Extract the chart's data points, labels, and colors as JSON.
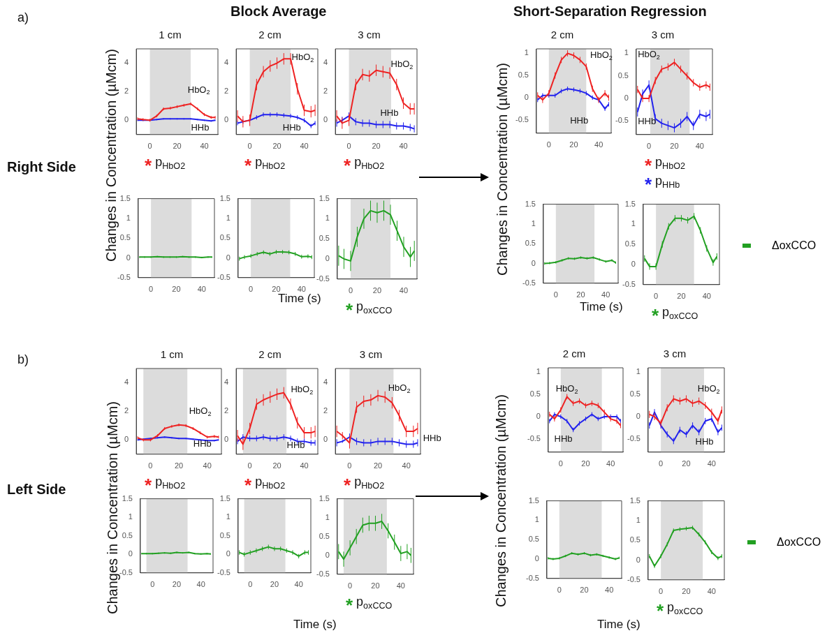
{
  "chart_data": [
    {
      "type": "line",
      "title": "1 cm",
      "x": [
        -9,
        -5,
        0,
        5,
        10,
        15,
        20,
        25,
        30,
        35,
        40,
        45,
        48
      ],
      "xlim": [
        -10,
        50
      ],
      "xticks": [
        0,
        20,
        40
      ],
      "ylim": [
        -1,
        5
      ],
      "yticks": [
        0,
        2,
        4
      ],
      "bands": [
        {
          "axis": "x",
          "from": 0,
          "to": 30,
          "color": "#dcdcdc"
        }
      ],
      "series": [
        {
          "name": "HbO$_{2}$",
          "color": "#ee2222",
          "values": [
            0.1,
            0.05,
            0,
            0.3,
            0.8,
            0.85,
            0.95,
            1.05,
            1.15,
            0.8,
            0.4,
            0.2,
            0.2
          ],
          "errors": [
            0.1,
            0.1,
            0.1,
            0.1,
            0.1,
            0.1,
            0.1,
            0.1,
            0.1,
            0.1,
            0.1,
            0.1,
            0.1
          ]
        },
        {
          "name": "HHb",
          "color": "#2222ee",
          "values": [
            0,
            0,
            0,
            0.05,
            0.1,
            0.1,
            0.1,
            0.1,
            0.1,
            0.05,
            0,
            -0.05,
            0
          ],
          "errors": [
            0.05,
            0.05,
            0.05,
            0.05,
            0.05,
            0.05,
            0.05,
            0.05,
            0.05,
            0.05,
            0.05,
            0.05,
            0.05
          ]
        }
      ],
      "annotations": [
        "* p$_{HbO2}$"
      ]
    },
    {
      "type": "line",
      "title": "2 cm",
      "x": [
        -9,
        -5,
        0,
        5,
        10,
        15,
        20,
        25,
        30,
        35,
        40,
        45,
        48
      ],
      "xlim": [
        -10,
        50
      ],
      "xticks": [
        0,
        20,
        40
      ],
      "ylim": [
        -1,
        5
      ],
      "yticks": [
        0,
        2,
        4
      ],
      "bands": [
        {
          "axis": "x",
          "from": 0,
          "to": 30,
          "color": "#dcdcdc"
        }
      ],
      "series": [
        {
          "name": "HbO$_{2}$",
          "color": "#ee2222",
          "values": [
            0.3,
            -0.1,
            0,
            2.5,
            3.4,
            3.8,
            4,
            4.3,
            4.3,
            2.2,
            0.7,
            0.6,
            0.7
          ],
          "errors": [
            0.4,
            0.4,
            0.4,
            0.4,
            0.4,
            0.4,
            0.4,
            0.4,
            0.4,
            0.4,
            0.4,
            0.4,
            0.4
          ]
        },
        {
          "name": "HHb",
          "color": "#2222ee",
          "values": [
            -0.2,
            -0.1,
            0,
            0.2,
            0.4,
            0.4,
            0.4,
            0.35,
            0.3,
            0.2,
            0,
            -0.4,
            -0.2
          ],
          "errors": [
            0.15,
            0.15,
            0.15,
            0.15,
            0.15,
            0.15,
            0.15,
            0.15,
            0.15,
            0.15,
            0.15,
            0.15,
            0.15
          ]
        }
      ],
      "annotations": [
        "* p$_{HbO2}$"
      ]
    },
    {
      "type": "line",
      "title": "3 cm",
      "x": [
        -9,
        -5,
        0,
        5,
        10,
        15,
        20,
        25,
        30,
        35,
        40,
        45,
        48
      ],
      "xlim": [
        -10,
        50
      ],
      "xticks": [
        0,
        20,
        40
      ],
      "ylim": [
        -1,
        5
      ],
      "yticks": [
        0,
        2,
        4
      ],
      "bands": [
        {
          "axis": "x",
          "from": 0,
          "to": 31,
          "color": "#dcdcdc"
        }
      ],
      "series": [
        {
          "name": "HbO$_{2}$",
          "color": "#ee2222",
          "values": [
            0.3,
            -0.2,
            0,
            2.5,
            3.2,
            3.1,
            3.5,
            3.4,
            3.3,
            2.5,
            1.2,
            0.8,
            0.8
          ],
          "errors": [
            0.4,
            0.4,
            0.4,
            0.4,
            0.4,
            0.4,
            0.4,
            0.4,
            0.4,
            0.4,
            0.4,
            0.4,
            0.4
          ]
        },
        {
          "name": "HHb",
          "color": "#2222ee",
          "values": [
            -0.2,
            0,
            0.3,
            -0.1,
            -0.2,
            -0.2,
            -0.3,
            -0.3,
            -0.3,
            -0.4,
            -0.4,
            -0.5,
            -0.6
          ],
          "errors": [
            0.25,
            0.25,
            0.25,
            0.25,
            0.25,
            0.25,
            0.25,
            0.25,
            0.25,
            0.25,
            0.25,
            0.25,
            0.25
          ]
        }
      ],
      "annotations": [
        "* p$_{HbO2}$"
      ]
    },
    {
      "type": "line",
      "x": [
        -9,
        -5,
        0,
        5,
        10,
        15,
        20,
        25,
        30,
        35,
        40,
        45,
        48
      ],
      "xlim": [
        -10,
        50
      ],
      "xticks": [
        0,
        20,
        40
      ],
      "ylim": [
        -0.5,
        1.5
      ],
      "yticks": [
        -0.5,
        0,
        0.5,
        1,
        1.5
      ],
      "bands": [
        {
          "axis": "x",
          "from": 0,
          "to": 32,
          "color": "#dcdcdc"
        }
      ],
      "series": [
        {
          "color": "#22a022",
          "values": [
            0.02,
            0.02,
            0.02,
            0.03,
            0.02,
            0.02,
            0.02,
            0.03,
            0.02,
            0.02,
            0.01,
            0.02,
            0.02
          ],
          "errors": [
            0.02,
            0.02,
            0.02,
            0.02,
            0.02,
            0.02,
            0.02,
            0.02,
            0.02,
            0.02,
            0.02,
            0.02,
            0.02
          ]
        }
      ]
    },
    {
      "type": "line",
      "x": [
        -9,
        -5,
        0,
        5,
        10,
        15,
        20,
        25,
        30,
        35,
        40,
        45,
        48
      ],
      "xlim": [
        -10,
        50
      ],
      "xticks": [
        0,
        20,
        40
      ],
      "ylim": [
        -0.5,
        1.5
      ],
      "yticks": [
        -0.5,
        0,
        0.5,
        1,
        1.5
      ],
      "bands": [
        {
          "axis": "x",
          "from": 0,
          "to": 31,
          "color": "#dcdcdc"
        }
      ],
      "series": [
        {
          "color": "#22a022",
          "values": [
            -0.02,
            0.02,
            0.05,
            0.1,
            0.14,
            0.1,
            0.15,
            0.15,
            0.14,
            0.1,
            0.03,
            0.04,
            0.02
          ],
          "errors": [
            0.05,
            0.05,
            0.05,
            0.05,
            0.05,
            0.05,
            0.05,
            0.05,
            0.05,
            0.05,
            0.05,
            0.05,
            0.05
          ]
        }
      ]
    },
    {
      "type": "line",
      "x": [
        -9,
        -5,
        0,
        5,
        10,
        15,
        20,
        25,
        30,
        35,
        40,
        45,
        48
      ],
      "xlim": [
        -10,
        50
      ],
      "xticks": [
        0,
        20,
        40
      ],
      "ylim": [
        -0.5,
        1.5
      ],
      "yticks": [
        -0.5,
        0,
        0.5,
        1,
        1.5
      ],
      "bands": [
        {
          "axis": "x",
          "from": 0,
          "to": 30,
          "color": "#dcdcdc"
        }
      ],
      "series": [
        {
          "color": "#22a022",
          "values": [
            0.08,
            0,
            -0.05,
            0.55,
            1,
            1.2,
            1.15,
            1.2,
            1.1,
            0.7,
            0.3,
            0.05,
            0.2
          ],
          "errors": [
            0.25,
            0.25,
            0.25,
            0.25,
            0.25,
            0.25,
            0.25,
            0.25,
            0.25,
            0.25,
            0.25,
            0.25,
            0.25
          ]
        }
      ],
      "annotations": [
        "* p$_{oxCCO}$"
      ]
    },
    {
      "type": "line",
      "title": "2 cm",
      "x": [
        -9,
        -5,
        0,
        5,
        10,
        15,
        20,
        25,
        30,
        35,
        40,
        45,
        48
      ],
      "xlim": [
        -10,
        50
      ],
      "xticks": [
        0,
        20,
        40
      ],
      "ylim": [
        -0.8,
        1.1
      ],
      "yticks": [
        -0.5,
        0,
        0.5,
        1
      ],
      "bands": [
        {
          "axis": "x",
          "from": 0,
          "to": 30,
          "color": "#dcdcdc"
        }
      ],
      "series": [
        {
          "name": "HbO$_{2}$",
          "color": "#ee2222",
          "values": [
            0.05,
            -0.05,
            0.1,
            0.5,
            0.85,
            1,
            0.95,
            0.85,
            0.7,
            0.2,
            -0.05,
            0.1,
            0
          ],
          "errors": [
            0.07,
            0.07,
            0.07,
            0.07,
            0.07,
            0.07,
            0.07,
            0.07,
            0.07,
            0.07,
            0.07,
            0.07,
            0.07
          ]
        },
        {
          "name": "HHb",
          "color": "#2222ee",
          "values": [
            -0.05,
            0.05,
            0.05,
            0.05,
            0.15,
            0.2,
            0.18,
            0.15,
            0.1,
            0,
            -0.05,
            -0.25,
            -0.15
          ],
          "errors": [
            0.05,
            0.05,
            0.05,
            0.05,
            0.05,
            0.05,
            0.05,
            0.05,
            0.05,
            0.05,
            0.05,
            0.05,
            0.05
          ]
        }
      ]
    },
    {
      "type": "line",
      "title": "3 cm",
      "x": [
        -9,
        -5,
        0,
        5,
        10,
        15,
        20,
        25,
        30,
        35,
        40,
        45,
        48
      ],
      "xlim": [
        -10,
        50
      ],
      "xticks": [
        0,
        20,
        40
      ],
      "ylim": [
        -0.8,
        1.1
      ],
      "yticks": [
        -0.5,
        0,
        0.5,
        1
      ],
      "bands": [
        {
          "axis": "x",
          "from": 1,
          "to": 32,
          "color": "#dcdcdc"
        }
      ],
      "series": [
        {
          "name": "HbO$_{2}$",
          "color": "#ee2222",
          "values": [
            0.2,
            0,
            0,
            0.4,
            0.65,
            0.7,
            0.8,
            0.65,
            0.5,
            0.35,
            0.25,
            0.3,
            0.25
          ],
          "errors": [
            0.08,
            0.08,
            0.08,
            0.08,
            0.08,
            0.08,
            0.08,
            0.08,
            0.08,
            0.08,
            0.08,
            0.08,
            0.08
          ]
        },
        {
          "name": "HHb",
          "color": "#2222ee",
          "values": [
            -0.3,
            0.1,
            0.3,
            -0.45,
            -0.55,
            -0.6,
            -0.65,
            -0.55,
            -0.4,
            -0.6,
            -0.35,
            -0.4,
            -0.35
          ],
          "errors": [
            0.1,
            0.1,
            0.1,
            0.1,
            0.1,
            0.1,
            0.1,
            0.1,
            0.1,
            0.1,
            0.1,
            0.1,
            0.1
          ]
        }
      ],
      "annotations": [
        "* p$_{HbO2}$",
        "* p$_{HHb}$"
      ]
    },
    {
      "type": "line",
      "x": [
        -9,
        -5,
        0,
        5,
        10,
        15,
        20,
        25,
        30,
        35,
        40,
        45,
        48
      ],
      "xlim": [
        -10,
        50
      ],
      "xticks": [
        0,
        20,
        40
      ],
      "ylim": [
        -0.5,
        1.5
      ],
      "yticks": [
        -0.5,
        0,
        0.5,
        1,
        1.5
      ],
      "bands": [
        {
          "axis": "x",
          "from": 0,
          "to": 31,
          "color": "#dcdcdc"
        }
      ],
      "series": [
        {
          "color": "#22a022",
          "values": [
            0,
            0.01,
            0.03,
            0.08,
            0.13,
            0.12,
            0.15,
            0.13,
            0.15,
            0.1,
            0.05,
            0.08,
            0.02
          ],
          "errors": [
            0.03,
            0.03,
            0.03,
            0.03,
            0.03,
            0.03,
            0.03,
            0.03,
            0.03,
            0.03,
            0.03,
            0.03,
            0.03
          ]
        }
      ]
    },
    {
      "type": "line",
      "x": [
        -9,
        -5,
        0,
        5,
        10,
        15,
        20,
        25,
        30,
        35,
        40,
        45,
        48
      ],
      "xlim": [
        -10,
        50
      ],
      "xticks": [
        0,
        20,
        40
      ],
      "ylim": [
        -0.5,
        1.5
      ],
      "yticks": [
        -0.5,
        0,
        0.5,
        1,
        1.5
      ],
      "bands": [
        {
          "axis": "x",
          "from": 0,
          "to": 30,
          "color": "#dcdcdc"
        }
      ],
      "legend": "right",
      "series": [
        {
          "name": "ΔoxCCO",
          "color": "#22a022",
          "values": [
            0.15,
            -0.05,
            -0.05,
            0.5,
            0.95,
            1.15,
            1.15,
            1.1,
            1.2,
            0.85,
            0.4,
            0.05,
            0.2
          ],
          "errors": [
            0.08,
            0.08,
            0.08,
            0.08,
            0.08,
            0.08,
            0.08,
            0.08,
            0.08,
            0.08,
            0.08,
            0.08,
            0.08
          ]
        }
      ],
      "annotations": [
        "* p$_{oxCCO}$"
      ]
    },
    {
      "type": "line",
      "title": "1 cm",
      "x": [
        -9,
        -5,
        0,
        5,
        10,
        15,
        20,
        25,
        30,
        35,
        40,
        45,
        48
      ],
      "xlim": [
        -10,
        50
      ],
      "xticks": [
        0,
        20,
        40
      ],
      "ylim": [
        -1,
        5
      ],
      "yticks": [
        0,
        2,
        4
      ],
      "bands": [
        {
          "axis": "x",
          "from": -5,
          "to": 26,
          "color": "#dcdcdc"
        }
      ],
      "series": [
        {
          "name": "HbO$_{2}$",
          "color": "#ee2222",
          "values": [
            0.15,
            0,
            0,
            0.3,
            0.8,
            0.95,
            1.05,
            1,
            0.8,
            0.5,
            0.2,
            0.25,
            0.2
          ],
          "errors": [
            0.1,
            0.1,
            0.1,
            0.1,
            0.1,
            0.1,
            0.1,
            0.1,
            0.1,
            0.1,
            0.1,
            0.1,
            0.1
          ]
        },
        {
          "name": "HHb",
          "color": "#2222ee",
          "values": [
            0,
            0.05,
            0.1,
            0.15,
            0.2,
            0.15,
            0.1,
            0.1,
            0.05,
            0,
            -0.05,
            -0.05,
            0
          ],
          "errors": [
            0.05,
            0.05,
            0.05,
            0.05,
            0.05,
            0.05,
            0.05,
            0.05,
            0.05,
            0.05,
            0.05,
            0.05,
            0.05
          ]
        }
      ],
      "annotations": [
        "* p$_{HbO2}$"
      ]
    },
    {
      "type": "line",
      "title": "2 cm",
      "x": [
        -9,
        -5,
        0,
        5,
        10,
        15,
        20,
        25,
        30,
        35,
        40,
        45,
        48
      ],
      "xlim": [
        -10,
        50
      ],
      "xticks": [
        0,
        20,
        40
      ],
      "ylim": [
        -1,
        5
      ],
      "yticks": [
        0,
        2,
        4
      ],
      "bands": [
        {
          "axis": "x",
          "from": -5,
          "to": 27,
          "color": "#dcdcdc"
        }
      ],
      "series": [
        {
          "name": "HbO$_{2}$",
          "color": "#ee2222",
          "values": [
            0.3,
            -0.3,
            0.8,
            2.5,
            2.8,
            3,
            3.2,
            3.3,
            2.5,
            1.2,
            0.5,
            0.5,
            0.6
          ],
          "errors": [
            0.4,
            0.4,
            0.4,
            0.4,
            0.4,
            0.4,
            0.4,
            0.4,
            0.4,
            0.4,
            0.4,
            0.4,
            0.4
          ]
        },
        {
          "name": "HHb",
          "color": "#2222ee",
          "values": [
            -0.1,
            0.2,
            0.1,
            0.1,
            0.2,
            0.1,
            0.1,
            0.2,
            0.1,
            -0.1,
            -0.1,
            -0.2,
            -0.2
          ],
          "errors": [
            0.2,
            0.2,
            0.2,
            0.2,
            0.2,
            0.2,
            0.2,
            0.2,
            0.2,
            0.2,
            0.2,
            0.2,
            0.2
          ]
        }
      ],
      "annotations": [
        "* p$_{HbO2}$"
      ]
    },
    {
      "type": "line",
      "title": "3 cm",
      "x": [
        -9,
        -5,
        0,
        5,
        10,
        15,
        20,
        25,
        30,
        35,
        40,
        45,
        48
      ],
      "xlim": [
        -10,
        50
      ],
      "xticks": [
        0,
        20,
        40
      ],
      "ylim": [
        -1,
        5
      ],
      "yticks": [
        0,
        2,
        4
      ],
      "bands": [
        {
          "axis": "x",
          "from": 0,
          "to": 31,
          "color": "#dcdcdc"
        }
      ],
      "series": [
        {
          "name": "HbO$_{2}$",
          "color": "#ee2222",
          "values": [
            0.6,
            0.3,
            -0.2,
            2.3,
            2.7,
            2.8,
            3.1,
            3,
            2.6,
            1.7,
            0.6,
            0.6,
            0.8
          ],
          "errors": [
            0.4,
            0.25,
            0.4,
            0.4,
            0.4,
            0.4,
            0.4,
            0.4,
            0.4,
            0.4,
            0.4,
            0.4,
            0.4
          ]
        },
        {
          "name": "HHb",
          "color": "#2222ee",
          "values": [
            -0.2,
            -0.1,
            0.2,
            -0.1,
            -0.2,
            -0.2,
            -0.1,
            -0.1,
            -0.1,
            -0.2,
            -0.3,
            -0.3,
            -0.2
          ],
          "errors": [
            0.25,
            0.1,
            0.25,
            0.25,
            0.25,
            0.25,
            0.25,
            0.25,
            0.25,
            0.25,
            0.25,
            0.25,
            0.25
          ]
        }
      ],
      "annotations": [
        "* p$_{HbO2}$"
      ]
    },
    {
      "type": "line",
      "x": [
        -9,
        -5,
        0,
        5,
        10,
        15,
        20,
        25,
        30,
        35,
        40,
        45,
        48
      ],
      "xlim": [
        -10,
        50
      ],
      "xticks": [
        0,
        20,
        40
      ],
      "ylim": [
        -0.5,
        1.5
      ],
      "yticks": [
        -0.5,
        0,
        0.5,
        1,
        1.5
      ],
      "bands": [
        {
          "axis": "x",
          "from": -5,
          "to": 29,
          "color": "#dcdcdc"
        }
      ],
      "series": [
        {
          "color": "#22a022",
          "values": [
            0.02,
            0.02,
            0.02,
            0.03,
            0.04,
            0.03,
            0.05,
            0.04,
            0.05,
            0.02,
            0.01,
            0.02,
            0.01
          ],
          "errors": [
            0.02,
            0.02,
            0.02,
            0.02,
            0.02,
            0.02,
            0.02,
            0.02,
            0.02,
            0.02,
            0.02,
            0.02,
            0.02
          ]
        }
      ]
    },
    {
      "type": "line",
      "x": [
        -9,
        -5,
        0,
        5,
        10,
        15,
        20,
        25,
        30,
        35,
        40,
        45,
        48
      ],
      "xlim": [
        -10,
        50
      ],
      "xticks": [
        0,
        20,
        40
      ],
      "ylim": [
        -0.5,
        1.5
      ],
      "yticks": [
        -0.5,
        0,
        0.5,
        1,
        1.5
      ],
      "bands": [
        {
          "axis": "x",
          "from": -5,
          "to": 29,
          "color": "#dcdcdc"
        }
      ],
      "series": [
        {
          "color": "#22a022",
          "values": [
            0.05,
            0,
            0.05,
            0.1,
            0.15,
            0.2,
            0.15,
            0.15,
            0.1,
            0.05,
            -0.05,
            0.05,
            0.05
          ],
          "errors": [
            0.06,
            0.06,
            0.06,
            0.06,
            0.06,
            0.06,
            0.06,
            0.06,
            0.06,
            0.06,
            0.06,
            0.06,
            0.06
          ]
        }
      ]
    },
    {
      "type": "line",
      "x": [
        -9,
        -5,
        0,
        5,
        10,
        15,
        20,
        25,
        30,
        35,
        40,
        45,
        48
      ],
      "xlim": [
        -10,
        50
      ],
      "xticks": [
        0,
        20,
        40
      ],
      "ylim": [
        -0.5,
        1.5
      ],
      "yticks": [
        -0.5,
        0,
        0.5,
        1,
        1.5
      ],
      "bands": [
        {
          "axis": "x",
          "from": -5,
          "to": 29,
          "color": "#dcdcdc"
        }
      ],
      "series": [
        {
          "color": "#22a022",
          "values": [
            0.1,
            -0.1,
            0.2,
            0.5,
            0.8,
            0.85,
            0.85,
            0.9,
            0.65,
            0.35,
            0.05,
            0.1,
            0
          ],
          "errors": [
            0.2,
            0.2,
            0.2,
            0.2,
            0.2,
            0.2,
            0.2,
            0.2,
            0.2,
            0.2,
            0.2,
            0.2,
            0.2
          ]
        }
      ],
      "annotations": [
        "* p$_{oxCCO}$"
      ]
    },
    {
      "type": "line",
      "title": "2 cm",
      "x": [
        -9,
        -5,
        0,
        5,
        10,
        15,
        20,
        25,
        30,
        35,
        40,
        45,
        48
      ],
      "xlim": [
        -10,
        50
      ],
      "xticks": [
        0,
        20,
        40
      ],
      "ylim": [
        -0.8,
        1.1
      ],
      "yticks": [
        -0.5,
        0,
        0.5,
        1
      ],
      "bands": [
        {
          "axis": "x",
          "from": 0,
          "to": 33,
          "color": "#dcdcdc"
        }
      ],
      "series": [
        {
          "name": "HbO$_{2}$",
          "color": "#ee2222",
          "values": [
            0.05,
            -0.05,
            0.15,
            0.45,
            0.3,
            0.35,
            0.25,
            0.3,
            0.25,
            0.1,
            -0.05,
            -0.1,
            -0.2
          ],
          "errors": [
            0.06,
            0.06,
            0.06,
            0.06,
            0.06,
            0.06,
            0.06,
            0.06,
            0.06,
            0.06,
            0.06,
            0.06,
            0.06
          ]
        },
        {
          "name": "HHb",
          "color": "#2222ee",
          "values": [
            -0.1,
            0.05,
            0,
            -0.1,
            -0.3,
            -0.15,
            -0.05,
            0.05,
            -0.05,
            0,
            0,
            0,
            -0.1
          ],
          "errors": [
            0.05,
            0.05,
            0.05,
            0.05,
            0.05,
            0.05,
            0.05,
            0.05,
            0.05,
            0.05,
            0.05,
            0.05,
            0.05
          ]
        }
      ]
    },
    {
      "type": "line",
      "title": "3 cm",
      "x": [
        -9,
        -5,
        0,
        5,
        10,
        15,
        20,
        25,
        30,
        35,
        40,
        45,
        48
      ],
      "xlim": [
        -10,
        50
      ],
      "xticks": [
        0,
        20,
        40
      ],
      "ylim": [
        -0.8,
        1.1
      ],
      "yticks": [
        -0.5,
        0,
        0.5,
        1
      ],
      "bands": [
        {
          "axis": "x",
          "from": 0,
          "to": 34,
          "color": "#dcdcdc"
        }
      ],
      "series": [
        {
          "name": "HbO$_{2}$",
          "color": "#ee2222",
          "values": [
            0.05,
            0,
            -0.15,
            0.2,
            0.4,
            0.35,
            0.4,
            0.3,
            0.35,
            0.25,
            0.1,
            -0.1,
            0.15
          ],
          "errors": [
            0.08,
            0.08,
            0.08,
            0.08,
            0.08,
            0.08,
            0.08,
            0.08,
            0.08,
            0.08,
            0.08,
            0.08,
            0.08
          ]
        },
        {
          "name": "HHb",
          "color": "#2222ee",
          "values": [
            -0.2,
            0.1,
            -0.2,
            -0.4,
            -0.55,
            -0.3,
            -0.4,
            -0.2,
            -0.35,
            -0.1,
            -0.05,
            -0.35,
            -0.25
          ],
          "errors": [
            0.07,
            0.07,
            0.07,
            0.07,
            0.07,
            0.07,
            0.07,
            0.07,
            0.07,
            0.07,
            0.07,
            0.07,
            0.07
          ]
        }
      ]
    },
    {
      "type": "line",
      "x": [
        -9,
        -5,
        0,
        5,
        10,
        15,
        20,
        25,
        30,
        35,
        40,
        45,
        48
      ],
      "xlim": [
        -10,
        50
      ],
      "xticks": [
        0,
        20,
        40
      ],
      "ylim": [
        -0.5,
        1.5
      ],
      "yticks": [
        -0.5,
        0,
        0.5,
        1,
        1.5
      ],
      "bands": [
        {
          "axis": "x",
          "from": 0,
          "to": 34,
          "color": "#dcdcdc"
        }
      ],
      "series": [
        {
          "color": "#22a022",
          "values": [
            0.02,
            0,
            0.02,
            0.08,
            0.15,
            0.12,
            0.15,
            0.1,
            0.12,
            0.08,
            0.04,
            0,
            0.03
          ],
          "errors": [
            0.03,
            0.03,
            0.03,
            0.03,
            0.03,
            0.03,
            0.03,
            0.03,
            0.03,
            0.03,
            0.03,
            0.03,
            0.03
          ]
        }
      ]
    },
    {
      "type": "line",
      "x": [
        -9,
        -5,
        0,
        5,
        10,
        15,
        20,
        25,
        30,
        35,
        40,
        45,
        48
      ],
      "xlim": [
        -10,
        50
      ],
      "xticks": [
        0,
        20,
        40
      ],
      "ylim": [
        -0.5,
        1.5
      ],
      "yticks": [
        -0.5,
        0,
        0.5,
        1,
        1.5
      ],
      "bands": [
        {
          "axis": "x",
          "from": 0,
          "to": 33,
          "color": "#dcdcdc"
        }
      ],
      "legend": "right",
      "series": [
        {
          "name": "ΔoxCCO",
          "color": "#22a022",
          "values": [
            0.1,
            -0.15,
            0.1,
            0.4,
            0.75,
            0.78,
            0.8,
            0.82,
            0.65,
            0.45,
            0.2,
            0.05,
            0.1
          ],
          "errors": [
            0.05,
            0.05,
            0.05,
            0.05,
            0.05,
            0.05,
            0.05,
            0.05,
            0.05,
            0.05,
            0.05,
            0.05,
            0.05
          ]
        }
      ],
      "annotations": [
        "* p$_{oxCCO}$"
      ]
    },
    {
      "type": "other",
      "annotations": [
        "a)",
        "Block Average",
        "Short-Separation Regression",
        "Right Side",
        "Changes in Concentration (µMcm)",
        "Time (s)",
        "Changes in Concentration (µMcm)",
        "Time (s)",
        "b)",
        "Left Side",
        "Changes in Concentration (µMcm)",
        "Time (s)",
        "Changes in Concentration (µMcm)",
        "Time (s)"
      ]
    }
  ]
}
